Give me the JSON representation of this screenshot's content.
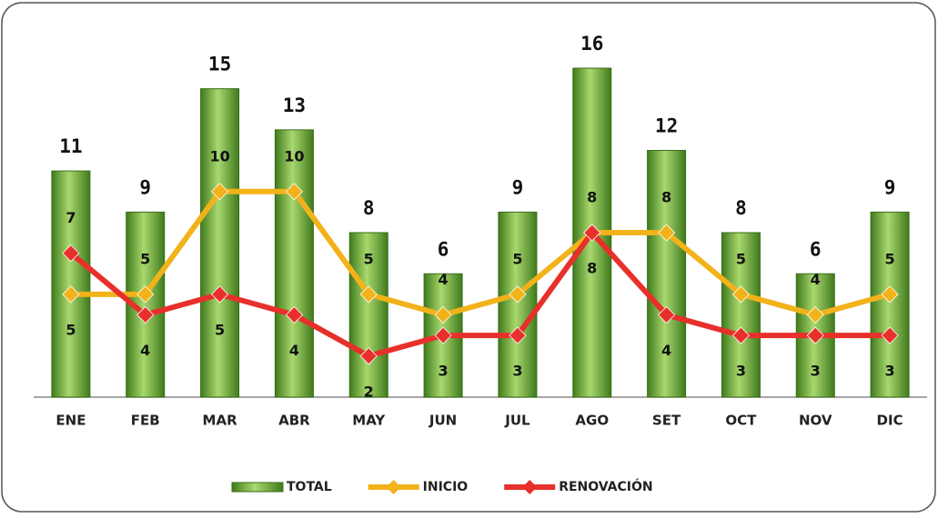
{
  "chart_data": {
    "type": "bar-line",
    "categories": [
      "ENE",
      "FEB",
      "MAR",
      "ABR",
      "MAY",
      "JUN",
      "JUL",
      "AGO",
      "SET",
      "OCT",
      "NOV",
      "DIC"
    ],
    "series": [
      {
        "name": "TOTAL",
        "type": "bar",
        "color": "#6aa43a",
        "values": [
          11,
          9,
          15,
          13,
          8,
          6,
          9,
          16,
          12,
          8,
          6,
          9
        ]
      },
      {
        "name": "INICIO",
        "type": "line",
        "color": "#f2b21a",
        "values": [
          5,
          5,
          10,
          10,
          5,
          4,
          5,
          8,
          8,
          5,
          4,
          5
        ]
      },
      {
        "name": "RENOVACIÓN",
        "type": "line",
        "color": "#e8302a",
        "values": [
          7,
          4,
          5,
          4,
          2,
          3,
          3,
          8,
          4,
          3,
          3,
          3
        ]
      }
    ],
    "ylim": [
      0,
      16
    ],
    "legend": "bottom"
  }
}
